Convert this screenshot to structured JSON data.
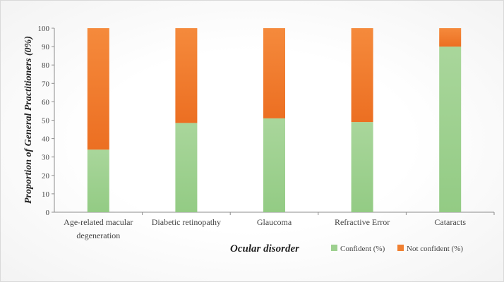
{
  "chart_data": {
    "type": "bar",
    "stacked": true,
    "categories": [
      [
        "Age-related macular",
        "degeneration"
      ],
      [
        "Diabetic retinopathy"
      ],
      [
        "Glaucoma"
      ],
      [
        "Refractive Error"
      ],
      [
        "Cataracts"
      ]
    ],
    "series": [
      {
        "name": "Confident (%)",
        "color": "#9dd08f",
        "values": [
          34,
          48.5,
          51,
          49,
          90
        ]
      },
      {
        "name": "Not confident (%)",
        "color": "#f07f30",
        "values": [
          66,
          51.5,
          49,
          51,
          10
        ]
      }
    ],
    "xlabel": "Ocular disorder",
    "ylabel": "Proportion of General Practitioners (0%)",
    "ylim": [
      0,
      100
    ],
    "yticks": [
      0,
      10,
      20,
      30,
      40,
      50,
      60,
      70,
      80,
      90,
      100
    ],
    "grid": false,
    "legend_position": "bottom-right"
  }
}
